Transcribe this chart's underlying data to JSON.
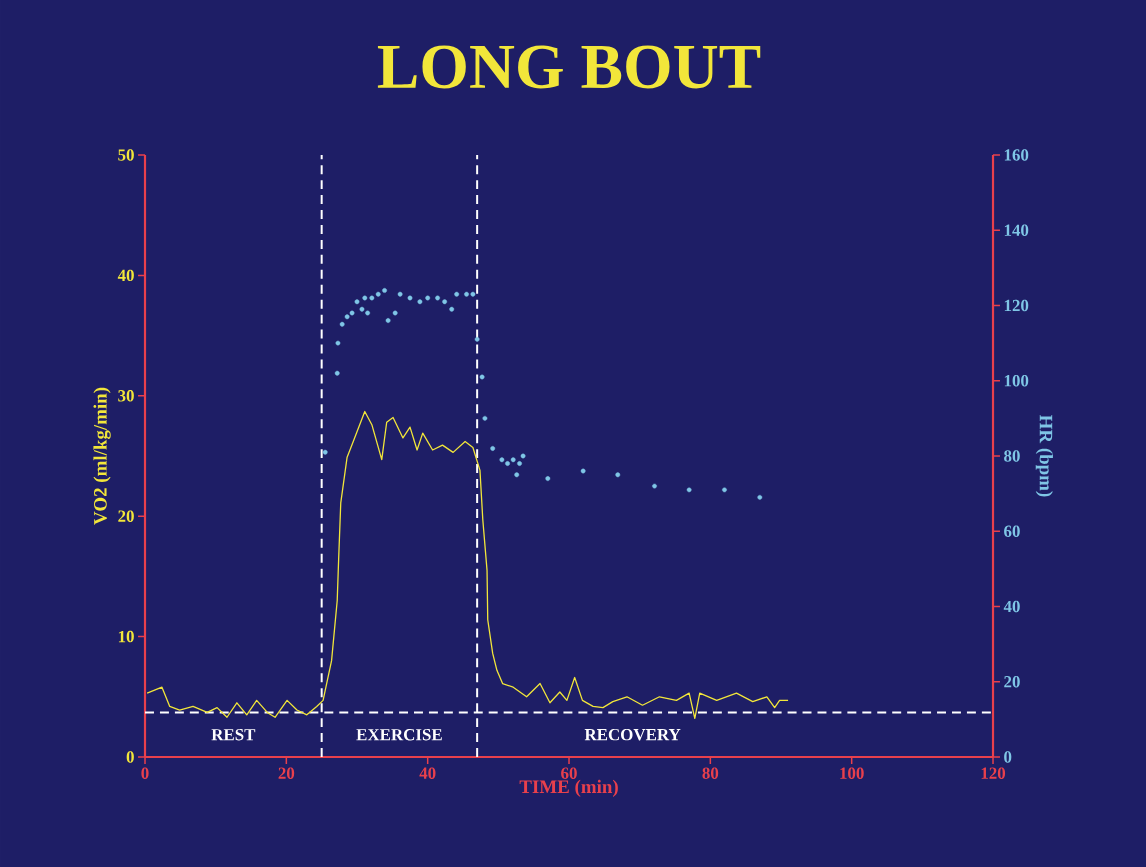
{
  "chart_data": {
    "type": "line",
    "title": "LONG BOUT",
    "xlabel": "TIME (min)",
    "ylabel": "VO2 (ml/kg/min)",
    "y2label": "HR (bpm)",
    "xlim": [
      0,
      120
    ],
    "xticks": [
      0,
      20,
      40,
      60,
      80,
      100,
      120
    ],
    "ylim": [
      0,
      50
    ],
    "yticks": [
      0,
      10,
      20,
      30,
      40,
      50
    ],
    "y2lim": [
      0,
      160
    ],
    "y2ticks": [
      0,
      20,
      40,
      60,
      80,
      100,
      120,
      140,
      160
    ],
    "grid": false,
    "series": [
      {
        "color": "#f2e63a",
        "marker": "none",
        "line_style": "solid",
        "x": [
          0.3,
          2.4,
          3.5,
          4.9,
          6.8,
          8.8,
          10.2,
          11.6,
          13,
          14.4,
          15.8,
          17.3,
          18.4,
          20.1,
          21.5,
          22.9,
          24.3,
          25.2,
          26.4,
          27.2,
          27.4,
          27.7,
          28.6,
          29.4,
          31.1,
          32.1,
          33.5,
          34.2,
          35.1,
          36.5,
          37.5,
          38.5,
          39.3,
          40.7,
          42.1,
          43.6,
          45.3,
          46.4,
          47.4,
          47.8,
          48.4,
          48.5,
          49.2,
          49.8,
          50.6,
          52.1,
          54,
          55.9,
          57.3,
          58.7,
          59.7,
          60.8,
          61.9,
          63.4,
          64.8,
          66.2,
          68.2,
          70.4,
          72.8,
          75.2,
          77,
          77.8,
          78.5,
          80.9,
          83.7,
          86,
          88,
          89.1,
          89.8,
          91
        ],
        "values": [
          5.3,
          5.8,
          4.2,
          3.9,
          4.2,
          3.7,
          4.1,
          3.3,
          4.5,
          3.5,
          4.7,
          3.7,
          3.3,
          4.7,
          3.9,
          3.5,
          4.2,
          4.7,
          8,
          13,
          16.4,
          21.1,
          24.9,
          26.1,
          28.7,
          27.6,
          24.7,
          27.8,
          28.2,
          26.5,
          27.4,
          25.5,
          26.9,
          25.5,
          25.9,
          25.3,
          26.2,
          25.7,
          23.8,
          19.7,
          15.5,
          11.4,
          8.6,
          7.2,
          6.1,
          5.8,
          5,
          6.1,
          4.5,
          5.4,
          4.7,
          6.6,
          4.7,
          4.2,
          4.1,
          4.6,
          5,
          4.3,
          5,
          4.7,
          5.3,
          3.2,
          5.3,
          4.7,
          5.3,
          4.6,
          5,
          4.1,
          4.7,
          4.7
        ]
      },
      {
        "type": "scatter",
        "axis": "y2",
        "color": "#7fc6e6",
        "marker": "circle",
        "x": [
          25.5,
          27.2,
          27.3,
          27.9,
          28.6,
          29.3,
          30,
          30.7,
          31.1,
          31.5,
          32.1,
          33,
          33.9,
          34.4,
          35.4,
          36.1,
          37.5,
          38.9,
          40,
          41.4,
          42.4,
          43.4,
          44.1,
          45.5,
          46.4,
          47,
          47.7,
          48.1,
          49.2,
          50.5,
          51.3,
          52.1,
          52.6,
          53,
          53.5,
          57,
          62,
          66.9,
          72.1,
          77,
          82,
          87
        ],
        "values": [
          81,
          102,
          110,
          115,
          117,
          118,
          121,
          119,
          122,
          118,
          122,
          123,
          124,
          116,
          118,
          123,
          122,
          121,
          122,
          122,
          121,
          119,
          123,
          123,
          123,
          111,
          101,
          90,
          82,
          79,
          78,
          79,
          75,
          78,
          80,
          74,
          76,
          75,
          72,
          71,
          71,
          69
        ]
      }
    ],
    "ref_lines": [
      {
        "axis": "x",
        "value": 25,
        "color": "#ffffff",
        "line_style": "dashed"
      },
      {
        "axis": "x",
        "value": 47,
        "color": "#ffffff",
        "line_style": "dashed"
      },
      {
        "axis": "y",
        "value": 3.7,
        "color": "#ffffff",
        "line_style": "dashed"
      }
    ],
    "annotations": [
      "REST",
      "EXERCISE",
      "RECOVERY"
    ]
  }
}
